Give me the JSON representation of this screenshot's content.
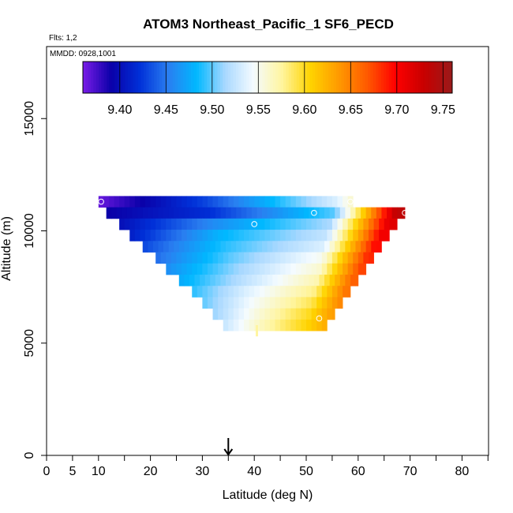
{
  "chart_data": {
    "type": "heatmap",
    "title": "ATOM3 Northeast_Pacific_1 SF6_PECD",
    "flights_label": "Flts: 1,2",
    "date_label": "MMDD: 0928,1001",
    "xlabel": "Latitude (deg N)",
    "ylabel": "Altitude (m)",
    "xlim": [
      0,
      85
    ],
    "ylim": [
      0,
      18500
    ],
    "x_ticks": [
      0,
      5,
      10,
      20,
      30,
      40,
      50,
      60,
      70,
      80
    ],
    "x_tick_labels": [
      "0",
      "5",
      "10",
      "20",
      "30",
      "40",
      "50",
      "60",
      "70",
      "80"
    ],
    "x_minor_ticks": [
      15,
      25,
      35,
      45,
      55,
      65,
      75,
      85
    ],
    "y_ticks": [
      0,
      5000,
      10000,
      15000
    ],
    "y_tick_labels": [
      "0",
      "5000",
      "10000",
      "15000"
    ],
    "colorbar": {
      "range": [
        9.36,
        9.76
      ],
      "ticks": [
        9.4,
        9.45,
        9.5,
        9.55,
        9.6,
        9.65,
        9.7,
        9.75
      ],
      "tick_labels": [
        "9.40",
        "9.45",
        "9.50",
        "9.55",
        "9.60",
        "9.65",
        "9.70",
        "9.75"
      ],
      "colors": [
        "#7a1ce8",
        "#0a00a8",
        "#0030d8",
        "#2a7ef0",
        "#00b8ff",
        "#a8d8ff",
        "#f4fbff",
        "#fff5a0",
        "#ffd400",
        "#ff9a00",
        "#ff5a00",
        "#ff0000",
        "#c80000",
        "#9a1a1a"
      ]
    },
    "layers": [
      {
        "alt": 11300,
        "lat_start": 10.0,
        "lat_end": 59.0,
        "v_start": 9.365,
        "v_mid": 9.43,
        "lat_front": 56,
        "v_west_of_front": 9.535,
        "v_east": 9.56
      },
      {
        "alt": 10800,
        "lat_start": 11.5,
        "lat_end": 69.0,
        "v_start": 9.39,
        "v_mid": 9.42,
        "lat_front": 55.5,
        "v_west_of_front": 9.5,
        "v_east": 9.735
      },
      {
        "alt": 10300,
        "lat_start": 14.0,
        "lat_end": 67.5,
        "v_start": 9.4,
        "v_mid": 9.46,
        "lat_front": 54.5,
        "v_west_of_front": 9.515,
        "v_east": 9.715
      },
      {
        "alt": 9800,
        "lat_start": 16.0,
        "lat_end": 66.0,
        "v_start": 9.41,
        "v_mid": 9.48,
        "lat_front": 54.0,
        "v_west_of_front": 9.525,
        "v_east": 9.705
      },
      {
        "alt": 9300,
        "lat_start": 18.5,
        "lat_end": 64.5,
        "v_start": 9.43,
        "v_mid": 9.49,
        "lat_front": 53.5,
        "v_west_of_front": 9.535,
        "v_east": 9.695
      },
      {
        "alt": 8800,
        "lat_start": 21.0,
        "lat_end": 63.0,
        "v_start": 9.445,
        "v_mid": 9.5,
        "lat_front": 53.0,
        "v_west_of_front": 9.55,
        "v_east": 9.685
      },
      {
        "alt": 8300,
        "lat_start": 23.0,
        "lat_end": 61.5,
        "v_start": 9.46,
        "v_mid": 9.51,
        "lat_front": 52.5,
        "v_west_of_front": 9.56,
        "v_east": 9.675
      },
      {
        "alt": 7800,
        "lat_start": 25.5,
        "lat_end": 60.0,
        "v_start": 9.475,
        "v_mid": 9.52,
        "lat_front": 52.0,
        "v_west_of_front": 9.57,
        "v_east": 9.665
      },
      {
        "alt": 7300,
        "lat_start": 28.0,
        "lat_end": 58.5,
        "v_start": 9.49,
        "v_mid": 9.535,
        "lat_front": 51.5,
        "v_west_of_front": 9.58,
        "v_east": 9.655
      },
      {
        "alt": 6800,
        "lat_start": 30.0,
        "lat_end": 57.0,
        "v_start": 9.5,
        "v_mid": 9.545,
        "lat_front": 51.0,
        "v_west_of_front": 9.59,
        "v_east": 9.645
      },
      {
        "alt": 6300,
        "lat_start": 32.0,
        "lat_end": 55.5,
        "v_start": 9.51,
        "v_mid": 9.555,
        "lat_front": 50.5,
        "v_west_of_front": 9.6,
        "v_east": 9.635
      },
      {
        "alt": 5800,
        "lat_start": 34.0,
        "lat_end": 54.0,
        "v_start": 9.525,
        "v_mid": 9.565,
        "lat_front": 50.0,
        "v_west_of_front": 9.605,
        "v_east": 9.625
      }
    ],
    "thin_column": {
      "lat": 40.5,
      "alt_bottom": 5300,
      "alt_top": 5800,
      "value": 9.575
    },
    "observation_points": [
      {
        "lat": 10.5,
        "alt": 11300
      },
      {
        "lat": 40.0,
        "alt": 10300
      },
      {
        "lat": 51.5,
        "alt": 10800
      },
      {
        "lat": 58.5,
        "alt": 11300
      },
      {
        "lat": 69.0,
        "alt": 10800
      },
      {
        "lat": 52.5,
        "alt": 6100
      }
    ],
    "arrow_marker": {
      "lat": 35,
      "label": ""
    }
  }
}
